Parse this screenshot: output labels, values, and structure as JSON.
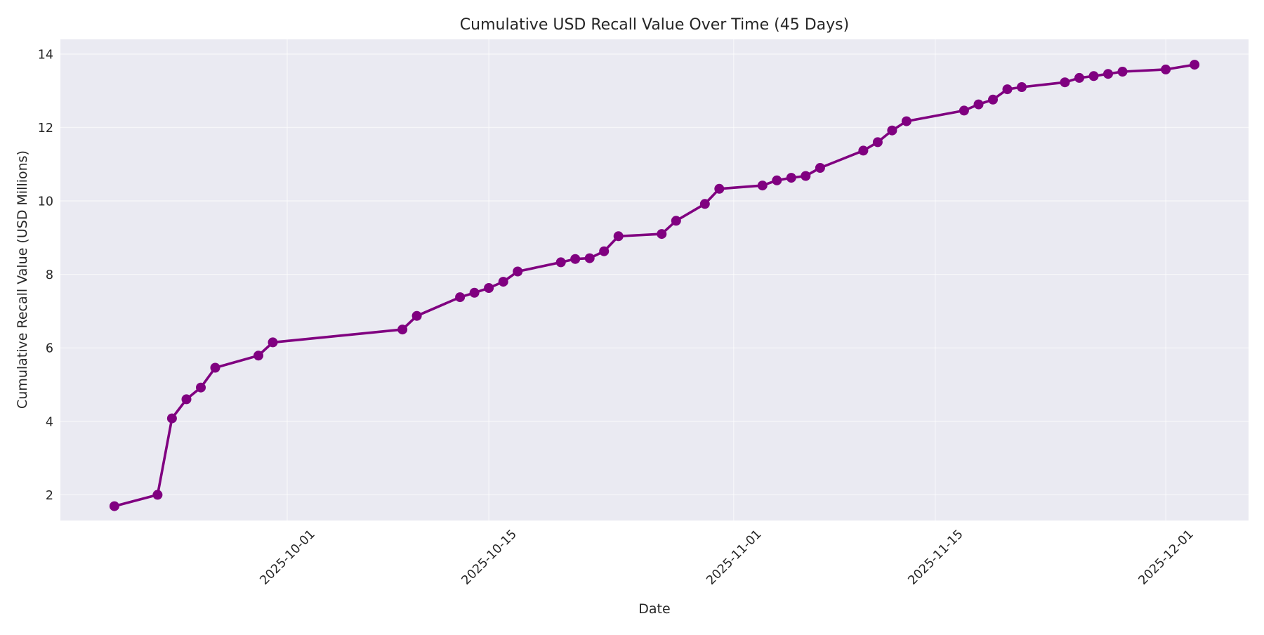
{
  "chart_data": {
    "type": "line",
    "title": "Cumulative USD Recall Value Over Time (45 Days)",
    "xlabel": "Date",
    "ylabel": "Cumulative Recall Value (USD Millions)",
    "x_tick_labels": [
      "2025-10-01",
      "2025-10-15",
      "2025-11-01",
      "2025-11-15",
      "2025-12-01"
    ],
    "y_tick_labels": [
      "2",
      "4",
      "6",
      "8",
      "10",
      "12",
      "14"
    ],
    "y_ticks": [
      2,
      4,
      6,
      8,
      10,
      12,
      14
    ],
    "ylim": [
      1.3,
      14.4
    ],
    "xlim": [
      "2025-09-15",
      "2025-12-07"
    ],
    "grid": true,
    "legend": null,
    "style": "seaborn-darkgrid",
    "colors": {
      "line": "#800080",
      "marker": "#800080",
      "plot_background": "#EAEAF2",
      "grid": "#ffffff",
      "text": "#262626"
    },
    "series": [
      {
        "name": "Cumulative Recall Value",
        "x": [
          "2025-09-19",
          "2025-09-22",
          "2025-09-23",
          "2025-09-24",
          "2025-09-25",
          "2025-09-26",
          "2025-09-29",
          "2025-09-30",
          "2025-10-09",
          "2025-10-10",
          "2025-10-13",
          "2025-10-14",
          "2025-10-15",
          "2025-10-16",
          "2025-10-17",
          "2025-10-20",
          "2025-10-21",
          "2025-10-22",
          "2025-10-23",
          "2025-10-24",
          "2025-10-27",
          "2025-10-28",
          "2025-10-30",
          "2025-10-31",
          "2025-11-03",
          "2025-11-04",
          "2025-11-05",
          "2025-11-06",
          "2025-11-07",
          "2025-11-10",
          "2025-11-11",
          "2025-11-12",
          "2025-11-13",
          "2025-11-17",
          "2025-11-18",
          "2025-11-19",
          "2025-11-20",
          "2025-11-21",
          "2025-11-24",
          "2025-11-25",
          "2025-11-26",
          "2025-11-27",
          "2025-11-28",
          "2025-12-01",
          "2025-12-03"
        ],
        "values": [
          1.69,
          2.0,
          4.08,
          4.6,
          4.92,
          5.46,
          5.79,
          6.15,
          6.5,
          6.87,
          7.38,
          7.5,
          7.63,
          7.8,
          8.08,
          8.33,
          8.42,
          8.44,
          8.63,
          9.04,
          9.1,
          9.46,
          9.92,
          10.33,
          10.42,
          10.56,
          10.63,
          10.68,
          10.9,
          11.37,
          11.6,
          11.92,
          12.17,
          12.46,
          12.63,
          12.76,
          13.04,
          13.1,
          13.23,
          13.35,
          13.4,
          13.46,
          13.52,
          13.58,
          13.71
        ]
      }
    ]
  }
}
